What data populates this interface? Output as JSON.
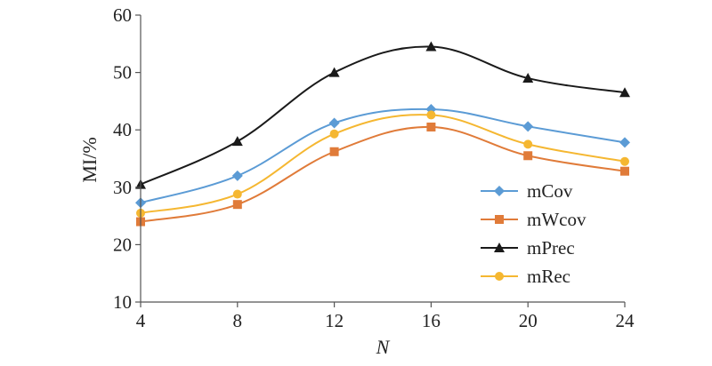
{
  "chart_data": {
    "type": "line",
    "title": "",
    "xlabel": "N",
    "ylabel": "MI/%",
    "x": [
      4,
      8,
      12,
      16,
      20,
      24
    ],
    "xticks": [
      "4",
      "8",
      "12",
      "16",
      "20",
      "24"
    ],
    "ylim": [
      10,
      60
    ],
    "yticks": [
      "10",
      "20",
      "30",
      "40",
      "50",
      "60"
    ],
    "grid": false,
    "legend_position": "right",
    "series": [
      {
        "name": "mCov",
        "values": [
          27.3,
          32.0,
          41.2,
          43.6,
          40.6,
          37.8
        ],
        "color": "#5b9bd5",
        "marker": "diamond"
      },
      {
        "name": "mWcov",
        "values": [
          24.0,
          27.0,
          36.2,
          40.5,
          35.5,
          32.8
        ],
        "color": "#e07b39",
        "marker": "square"
      },
      {
        "name": "mPrec",
        "values": [
          30.5,
          38.0,
          50.0,
          54.5,
          49.0,
          46.5
        ],
        "color": "#1a1a1a",
        "marker": "triangle"
      },
      {
        "name": "mRec",
        "values": [
          25.5,
          28.8,
          39.3,
          42.6,
          37.5,
          34.5
        ],
        "color": "#f5b731",
        "marker": "circle"
      }
    ]
  }
}
